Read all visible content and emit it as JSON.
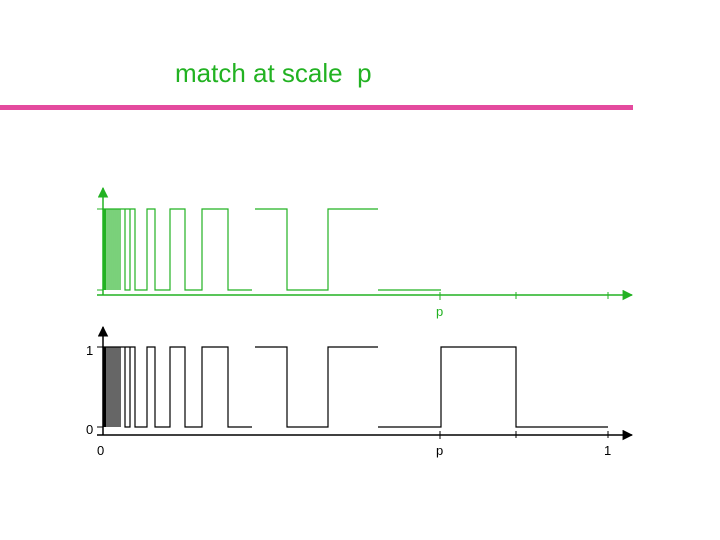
{
  "slide": {
    "title": "match at scale  p"
  },
  "colors": {
    "title": "#22b222",
    "rule": "#e44a9e",
    "top_signal": "#22b222",
    "bottom_signal": "#000000"
  },
  "top_plot": {
    "x_tick_label": "p"
  },
  "bottom_plot": {
    "y_tick_labels": [
      "1",
      "0"
    ],
    "x_tick_labels": [
      "0",
      "p",
      "1"
    ]
  }
}
